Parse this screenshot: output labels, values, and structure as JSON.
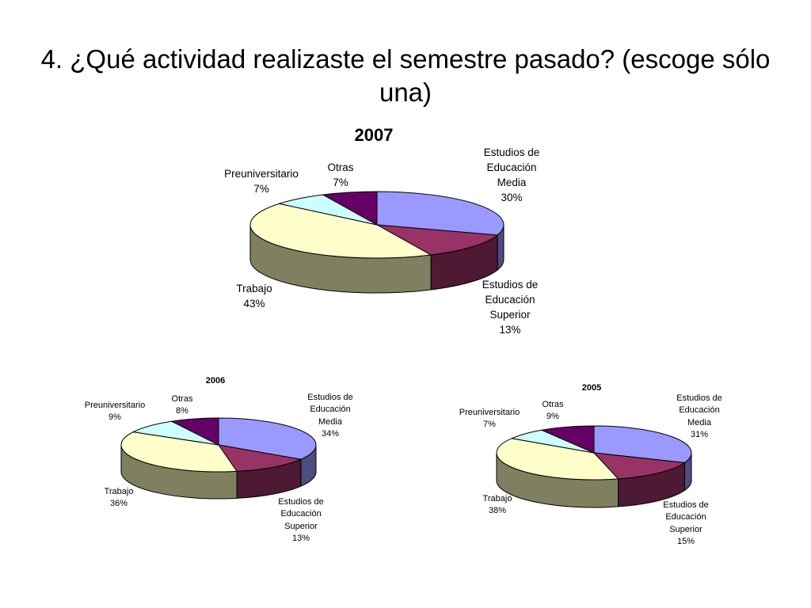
{
  "slide": {
    "title": "4. ¿Qué actividad realizaste el semestre pasado? (escoge sólo una)"
  },
  "chart_data": [
    {
      "type": "pie",
      "title": "2007",
      "slices": [
        {
          "name": [
            "Estudios de",
            "Educación",
            "Media"
          ],
          "percent_label": "30%",
          "value": 30,
          "color": "#9999ff"
        },
        {
          "name": [
            "Estudios de",
            "Educación",
            "Superior"
          ],
          "percent_label": "13%",
          "value": 13,
          "color": "#993366"
        },
        {
          "name": [
            "Trabajo"
          ],
          "percent_label": "43%",
          "value": 43,
          "color": "#ffffcc"
        },
        {
          "name": [
            "Preuniversitario"
          ],
          "percent_label": "7%",
          "value": 7,
          "color": "#ccffff"
        },
        {
          "name": [
            "Otras"
          ],
          "percent_label": "7%",
          "value": 7,
          "color": "#660066"
        }
      ]
    },
    {
      "type": "pie",
      "title": "2006",
      "slices": [
        {
          "name": [
            "Estudios de",
            "Educación",
            "Media"
          ],
          "percent_label": "34%",
          "value": 34,
          "color": "#9999ff"
        },
        {
          "name": [
            "Estudios de",
            "Educación",
            "Superior"
          ],
          "percent_label": "13%",
          "value": 13,
          "color": "#993366"
        },
        {
          "name": [
            "Trabajo"
          ],
          "percent_label": "36%",
          "value": 36,
          "color": "#ffffcc"
        },
        {
          "name": [
            "Preuniversitario"
          ],
          "percent_label": "9%",
          "value": 9,
          "color": "#ccffff"
        },
        {
          "name": [
            "Otras"
          ],
          "percent_label": "8%",
          "value": 8,
          "color": "#660066"
        }
      ]
    },
    {
      "type": "pie",
      "title": "2005",
      "slices": [
        {
          "name": [
            "Estudios de",
            "Educación",
            "Media"
          ],
          "percent_label": "31%",
          "value": 31,
          "color": "#9999ff"
        },
        {
          "name": [
            "Estudios de",
            "Educación",
            "Superior"
          ],
          "percent_label": "15%",
          "value": 15,
          "color": "#993366"
        },
        {
          "name": [
            "Trabajo"
          ],
          "percent_label": "38%",
          "value": 38,
          "color": "#ffffcc"
        },
        {
          "name": [
            "Preuniversitario"
          ],
          "percent_label": "7%",
          "value": 7,
          "color": "#ccffff"
        },
        {
          "name": [
            "Otras"
          ],
          "percent_label": "9%",
          "value": 9,
          "color": "#660066"
        }
      ]
    }
  ]
}
